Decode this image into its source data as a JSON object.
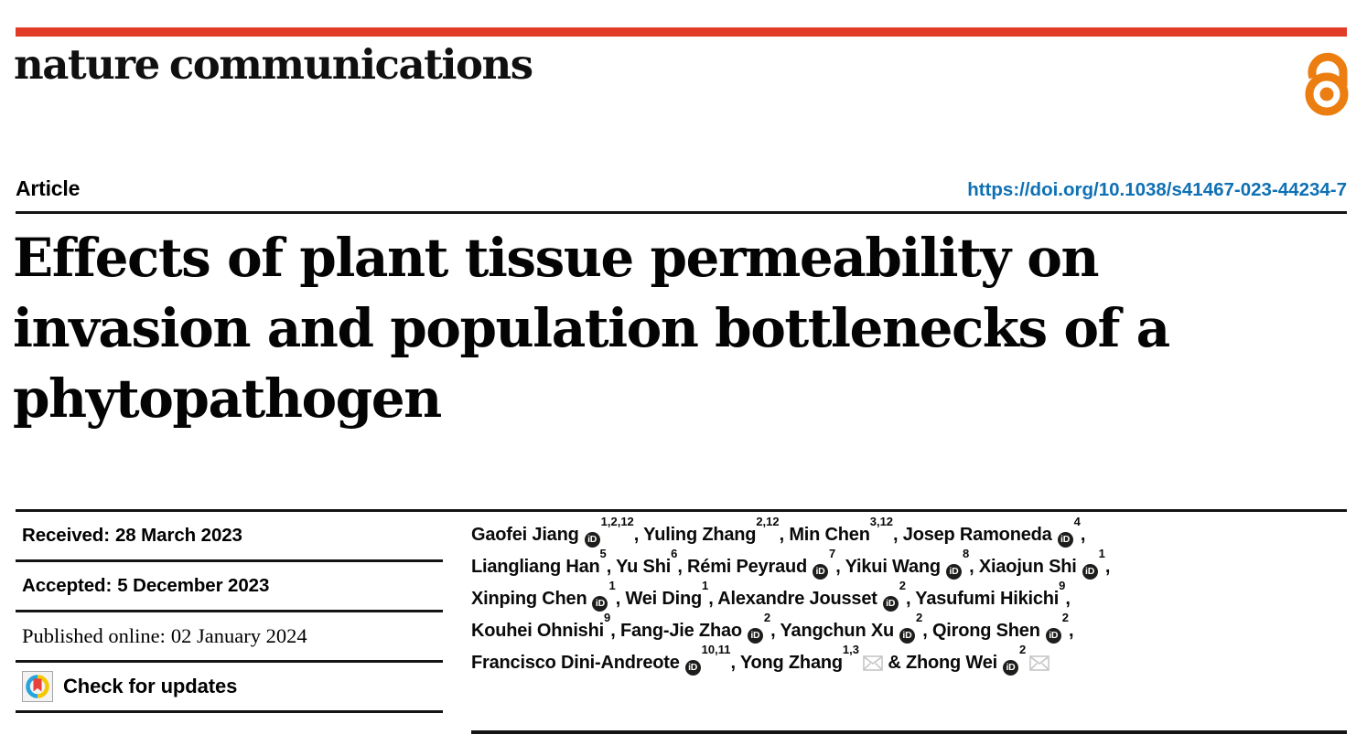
{
  "colors": {
    "accent_red": "#e23b28",
    "doi_blue": "#0f70b4",
    "open_access_orange": "#ec7e11",
    "rule_black": "#141414",
    "check_icon_blue": "#27a3dd",
    "check_icon_yellow": "#f6c800",
    "check_icon_red": "#e8403a",
    "orcid_icon_black": "#1d1d1b"
  },
  "masthead": {
    "journal": "nature communications",
    "open_access_icon": "open-access-lock"
  },
  "header": {
    "article_type": "Article",
    "doi": "https://doi.org/10.1038/s41467-023-44234-7"
  },
  "title": {
    "lines": [
      "Effects of plant tissue permeability on",
      "invasion and population bottlenecks of a",
      "phytopathogen"
    ]
  },
  "metadata": {
    "received_label": "Received:",
    "received_date": "28 March 2023",
    "accepted_label": "Accepted:",
    "accepted_date": "5 December 2023",
    "published_label": "Published online:",
    "published_date": "02 January 2024",
    "check_for_updates_label": "Check for updates"
  },
  "authors": {
    "orcid_icon_text": "iD",
    "list": [
      {
        "name": "Gaofei Jiang",
        "orcid": true,
        "sup": "1,2,12",
        "sep": ", "
      },
      {
        "name": "Yuling Zhang",
        "orcid": false,
        "sup": "2,12",
        "sep": ", "
      },
      {
        "name": "Min Chen",
        "orcid": false,
        "sup": "3,12",
        "sep": ", "
      },
      {
        "name": "Josep Ramoneda",
        "orcid": true,
        "sup": "4",
        "sep": ", ",
        "break_after": true
      },
      {
        "name": "Liangliang Han",
        "orcid": false,
        "sup": "5",
        "sep": ", "
      },
      {
        "name": "Yu Shi",
        "orcid": false,
        "sup": "6",
        "sep": ", "
      },
      {
        "name": "Rémi Peyraud",
        "orcid": true,
        "sup": "7",
        "sep": ", "
      },
      {
        "name": "Yikui Wang",
        "orcid": true,
        "sup": "8",
        "sep": ", "
      },
      {
        "name": "Xiaojun Shi",
        "orcid": true,
        "sup": "1",
        "sep": ", ",
        "break_after": true
      },
      {
        "name": "Xinping Chen",
        "orcid": true,
        "sup": "1",
        "sep": ", "
      },
      {
        "name": "Wei Ding",
        "orcid": false,
        "sup": "1",
        "sep": ", "
      },
      {
        "name": "Alexandre Jousset",
        "orcid": true,
        "sup": "2",
        "sep": ", "
      },
      {
        "name": "Yasufumi Hikichi",
        "orcid": false,
        "sup": "9",
        "sep": ", ",
        "break_after": true
      },
      {
        "name": "Kouhei Ohnishi",
        "orcid": false,
        "sup": "9",
        "sep": ", "
      },
      {
        "name": "Fang-Jie Zhao",
        "orcid": true,
        "sup": "2",
        "sep": ", "
      },
      {
        "name": "Yangchun Xu",
        "orcid": true,
        "sup": "2",
        "sep": ", "
      },
      {
        "name": "Qirong Shen",
        "orcid": true,
        "sup": "2",
        "sep": ", ",
        "break_after": true
      },
      {
        "name": "Francisco Dini-Andreote",
        "orcid": true,
        "sup": "10,11",
        "sep": ", "
      },
      {
        "name": "Yong Zhang",
        "orcid": false,
        "sup": "1,3",
        "email": true,
        "sep": " & "
      },
      {
        "name": "Zhong Wei",
        "orcid": true,
        "sup": "2",
        "email": true,
        "sep": ""
      }
    ]
  }
}
